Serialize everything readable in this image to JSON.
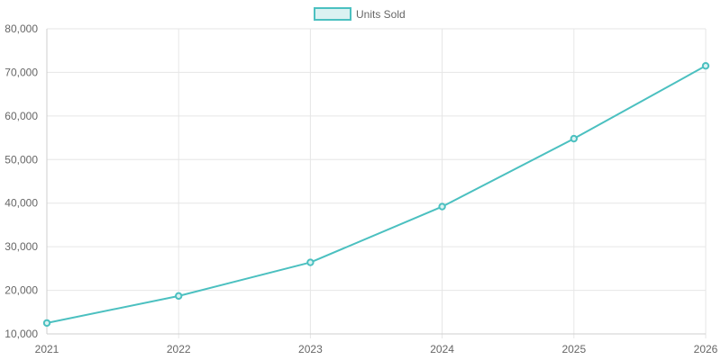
{
  "chart_data": {
    "type": "line",
    "categories": [
      "2021",
      "2022",
      "2023",
      "2024",
      "2025",
      "2026"
    ],
    "series": [
      {
        "name": "Units Sold",
        "values": [
          12500,
          18700,
          26400,
          39200,
          54800,
          71500
        ],
        "color": "#4bc0c0",
        "fill_color": "#dbf2f2"
      }
    ],
    "y_ticks": [
      "10,000",
      "20,000",
      "30,000",
      "40,000",
      "50,000",
      "60,000",
      "70,000",
      "80,000"
    ],
    "ylim": [
      10000,
      80000
    ],
    "grid": true,
    "legend_position": "top-center"
  }
}
